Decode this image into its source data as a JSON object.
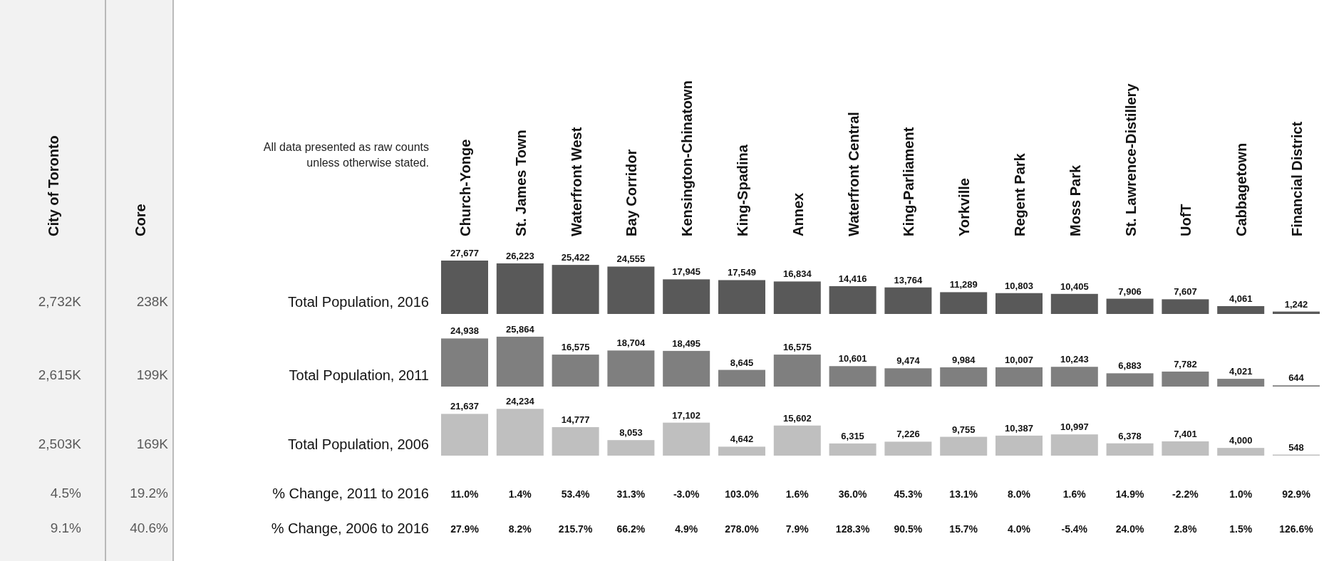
{
  "chart_data": [
    {
      "type": "other",
      "categories": [
        "City of Toronto",
        "Core"
      ],
      "y2_categories": [
        "Total Population, 2016",
        "Total Population, 2011",
        "Total Population, 2006"
      ],
      "cell_labels": [
        [
          "2,732K",
          "238K"
        ],
        [
          "2,615K",
          "199K"
        ],
        [
          "2,503K",
          "169K"
        ]
      ],
      "annotations": [
        "All data presented as raw counts unless otherwise stated."
      ]
    },
    {
      "type": "bar",
      "categories": [
        "Church-Yonge",
        "St. James Town",
        "Waterfront West",
        "Bay Corridor",
        "Kensington-Chinatown",
        "King-Spadina",
        "Annex",
        "Waterfront Central",
        "King-Parliament",
        "Yorkville",
        "Regent Park",
        "Moss Park",
        "St. Lawrence-Distillery",
        "UofT",
        "Cabbagetown",
        "Financial District"
      ],
      "series": [
        {
          "color": "#595959",
          "values": [
            27677,
            26223,
            25422,
            24555,
            17945,
            17549,
            16834,
            14416,
            13764,
            11289,
            10803,
            10405,
            7906,
            7607,
            4061,
            1242
          ],
          "value_labels": [
            "27,677",
            "26,223",
            "25,422",
            "24,555",
            "17,945",
            "17,549",
            "16,834",
            "14,416",
            "13,764",
            "11,289",
            "10,803",
            "10,405",
            "7,906",
            "7,607",
            "4,061",
            "1,242"
          ]
        }
      ]
    },
    {
      "type": "bar",
      "categories": [
        null,
        null,
        null,
        null,
        null,
        null,
        null,
        null,
        null,
        null,
        null,
        null,
        null,
        null,
        null,
        null
      ],
      "series": [
        {
          "color": "#7f7f7f",
          "values": [
            24938,
            25864,
            16575,
            18704,
            18495,
            8645,
            16575,
            10601,
            9474,
            9984,
            10007,
            10243,
            6883,
            7782,
            4021,
            644
          ],
          "value_labels": [
            "24,938",
            "25,864",
            "16,575",
            "18,704",
            "18,495",
            "8,645",
            "16,575",
            "10,601",
            "9,474",
            "9,984",
            "10,007",
            "10,243",
            "6,883",
            "7,782",
            "4,021",
            "644"
          ]
        }
      ]
    },
    {
      "type": "bar",
      "categories": [
        null,
        null,
        null,
        null,
        null,
        null,
        null,
        null,
        null,
        null,
        null,
        null,
        null,
        null,
        null,
        null
      ],
      "series": [
        {
          "color": "#bfbfbf",
          "values": [
            21637,
            24234,
            14777,
            8053,
            17102,
            4642,
            15602,
            6315,
            7226,
            9755,
            10387,
            10997,
            6378,
            7401,
            4000,
            548
          ],
          "value_labels": [
            "21,637",
            "24,234",
            "14,777",
            "8,053",
            "17,102",
            "4,642",
            "15,602",
            "6,315",
            "7,226",
            "9,755",
            "10,387",
            "10,997",
            "6,378",
            "7,401",
            "4,000",
            "548"
          ]
        }
      ]
    },
    {
      "type": "other",
      "categories": [
        null,
        null
      ],
      "y2_categories": [
        "% Change, 2011 to 2016",
        "% Change, 2006 to 2016"
      ],
      "cell_labels": [
        [
          "4.5%",
          "19.2%"
        ],
        [
          "9.1%",
          "40.6%"
        ]
      ]
    },
    {
      "type": "other",
      "categories": [
        null,
        null,
        null,
        null,
        null,
        null,
        null,
        null,
        null,
        null,
        null,
        null,
        null,
        null,
        null,
        null
      ],
      "cell_labels": [
        [
          "11.0%",
          "1.4%",
          "53.4%",
          "31.3%",
          "-3.0%",
          "103.0%",
          "1.6%",
          "36.0%",
          "45.3%",
          "13.1%",
          "8.0%",
          "1.6%",
          "14.9%",
          "-2.2%",
          "1.0%",
          "92.9%"
        ],
        [
          "27.9%",
          "8.2%",
          "215.7%",
          "66.2%",
          "4.9%",
          "278.0%",
          "7.9%",
          "128.3%",
          "90.5%",
          "15.7%",
          "4.0%",
          "-5.4%",
          "24.0%",
          "2.8%",
          "1.5%",
          "126.6%"
        ]
      ]
    }
  ]
}
